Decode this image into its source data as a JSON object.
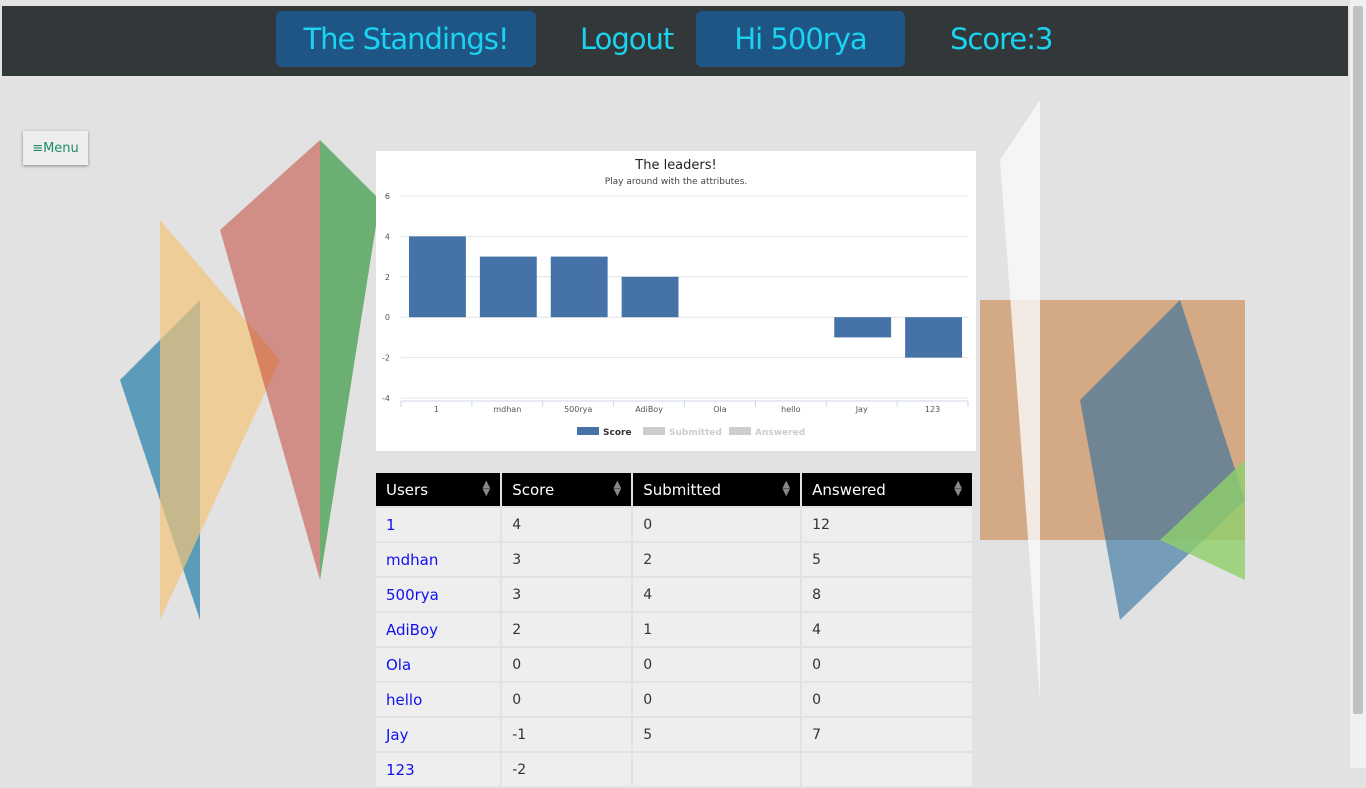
{
  "header": {
    "standings": "The Standings!",
    "logout": "Logout",
    "greeting": "Hi 500rya",
    "score": "Score:3"
  },
  "menu": {
    "icon": "hamburger-icon",
    "label": "≡Menu"
  },
  "chart_data": {
    "type": "bar",
    "title": "The leaders!",
    "subtitle": "Play around with the attributes.",
    "categories": [
      "1",
      "mdhan",
      "500rya",
      "AdiBoy",
      "Ola",
      "hello",
      "Jay",
      "123"
    ],
    "series": [
      {
        "name": "Score",
        "values": [
          4,
          3,
          3,
          2,
          0,
          0,
          -1,
          -2
        ],
        "color": "#4572a7",
        "active": true
      },
      {
        "name": "Submitted",
        "active": false
      },
      {
        "name": "Answered",
        "active": false
      }
    ],
    "ylim": [
      -4,
      6
    ],
    "yticks": [
      "6",
      "4",
      "2",
      "0",
      "-2",
      "-4"
    ],
    "grid": true,
    "legend": "bottom"
  },
  "table": {
    "headers": [
      "Users",
      "Score",
      "Submitted",
      "Answered"
    ],
    "rows": [
      [
        "1",
        "4",
        "0",
        "12"
      ],
      [
        "mdhan",
        "3",
        "2",
        "5"
      ],
      [
        "500rya",
        "3",
        "4",
        "8"
      ],
      [
        "AdiBoy",
        "2",
        "1",
        "4"
      ],
      [
        "Ola",
        "0",
        "0",
        "0"
      ],
      [
        "hello",
        "0",
        "0",
        "0"
      ],
      [
        "Jay",
        "-1",
        "5",
        "7"
      ],
      [
        "123",
        "-2",
        "",
        ""
      ]
    ]
  }
}
